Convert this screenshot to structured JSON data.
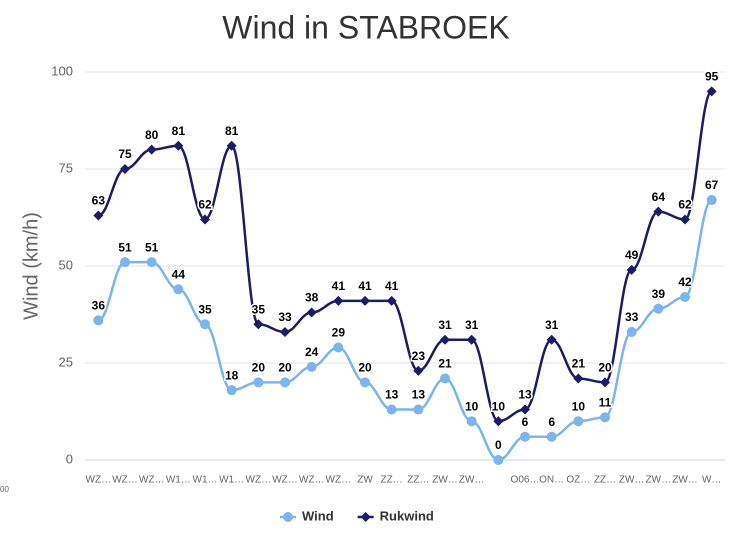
{
  "chart_data": {
    "type": "line",
    "title": "Wind in STABROEK",
    "y_label": "Wind (km/h)",
    "annotation": "00",
    "categories": [
      "WZ…",
      "WZ…",
      "WZ…",
      "W1…",
      "W1…",
      "W1…",
      "WZ…",
      "WZ…",
      "WZ…",
      "WZ…",
      "ZW",
      "ZZ…",
      "ZZ…",
      "ZW…",
      "ZW…",
      null,
      "O06…",
      "ON…",
      "OZ…",
      "ZZ…",
      "ZW…",
      "ZW…",
      "ZW…",
      "W…"
    ],
    "series": [
      {
        "name": "Wind",
        "color": "#7cb5ec",
        "marker": "circle",
        "values": [
          36,
          51,
          51,
          44,
          35,
          18,
          20,
          20,
          24,
          29,
          20,
          13,
          13,
          21,
          10,
          0,
          6,
          6,
          10,
          11,
          33,
          39,
          42,
          67
        ]
      },
      {
        "name": "Rukwind",
        "color": "#1c1c66",
        "marker": "diamond",
        "values": [
          63,
          75,
          80,
          81,
          62,
          81,
          35,
          33,
          38,
          41,
          41,
          41,
          23,
          31,
          31,
          10,
          13,
          31,
          21,
          20,
          49,
          64,
          62,
          95
        ]
      }
    ],
    "ylim": [
      0,
      100
    ],
    "yticks": [
      0,
      25,
      50,
      75,
      100
    ],
    "grid": true,
    "legend": "bottom"
  }
}
